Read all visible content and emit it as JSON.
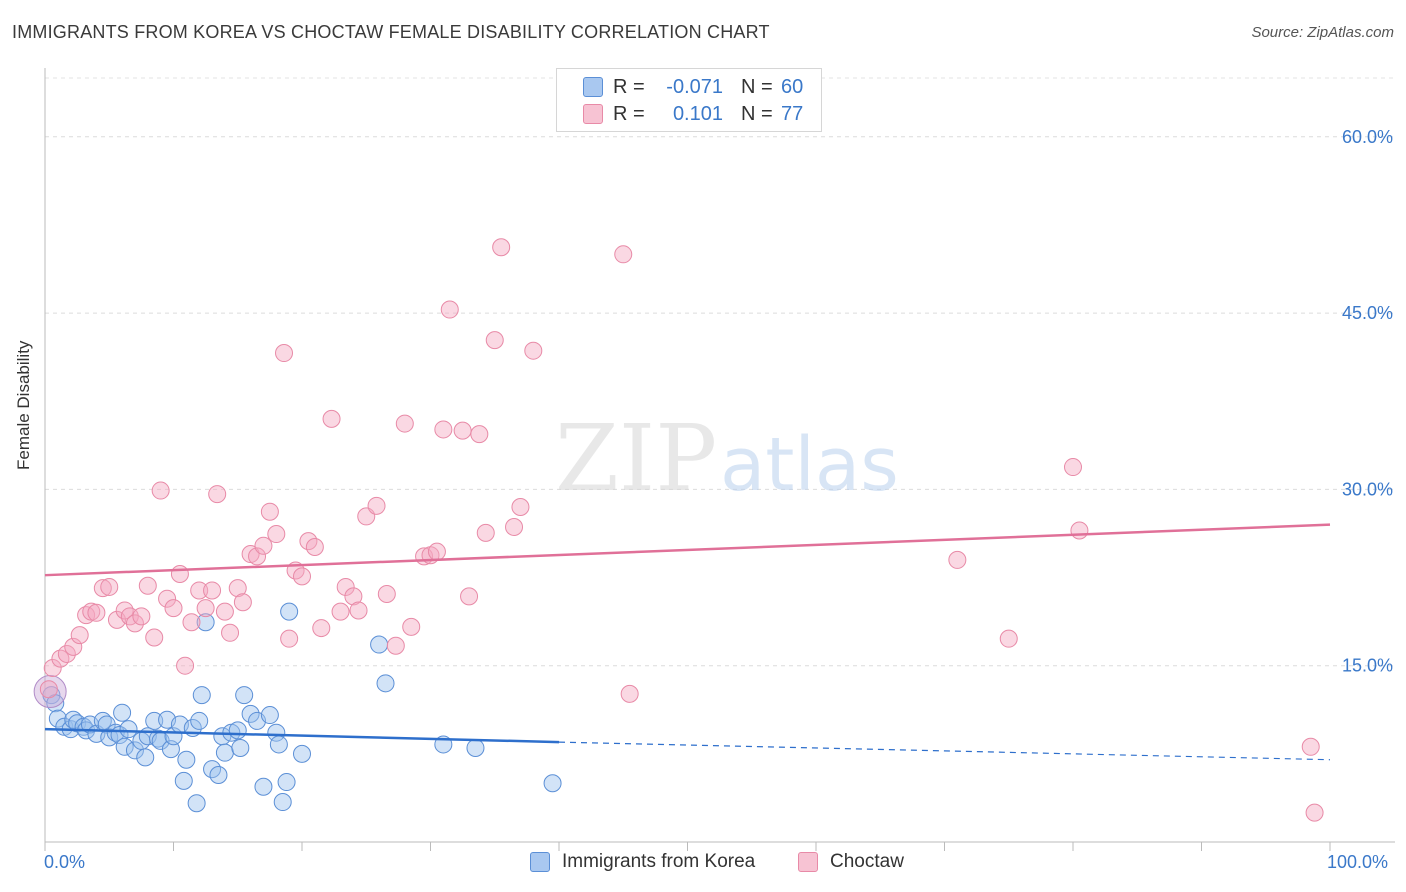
{
  "title": "IMMIGRANTS FROM KOREA VS CHOCTAW FEMALE DISABILITY CORRELATION CHART",
  "source": "Source: ZipAtlas.com",
  "watermark": {
    "zip": "ZIP",
    "atlas": "atlas"
  },
  "legend": {
    "rows": [
      {
        "r_label": "R =",
        "r_value": "-0.071",
        "n_label": "N =",
        "n_value": "60",
        "color": "#a9c8f0",
        "border": "#5b8fd6"
      },
      {
        "r_label": "R =",
        "r_value": "0.101",
        "n_label": "N =",
        "n_value": "77",
        "color": "#f7c3d3",
        "border": "#e88aa7"
      }
    ]
  },
  "bottom_legend": {
    "korea": "Immigrants from Korea",
    "choctaw": "Choctaw"
  },
  "x_axis": {
    "min_label": "0.0%",
    "max_label": "100.0%"
  },
  "chart_data": {
    "type": "scatter",
    "xlabel": "",
    "ylabel": "Female Disability",
    "xlim": [
      0,
      100
    ],
    "ylim": [
      0,
      65
    ],
    "y_ticks": [
      {
        "value": 15,
        "label": "15.0%"
      },
      {
        "value": 30,
        "label": "30.0%"
      },
      {
        "value": 45,
        "label": "45.0%"
      },
      {
        "value": 60,
        "label": "60.0%"
      }
    ],
    "grid": true,
    "series": [
      {
        "name": "Immigrants from Korea",
        "color": "#7fb0ea",
        "trend": {
          "x0": 0,
          "y0": 9.6,
          "x1": 40,
          "y1": 8.5,
          "x_dash_end": 100,
          "y_dash_end": 7.0,
          "color": "#2e6fcc"
        },
        "points": [
          [
            0.5,
            12.5
          ],
          [
            0.8,
            11.8
          ],
          [
            1,
            10.5
          ],
          [
            1.5,
            9.8
          ],
          [
            2,
            9.6
          ],
          [
            2.2,
            10.4
          ],
          [
            2.5,
            10.1
          ],
          [
            3,
            9.8
          ],
          [
            3.2,
            9.5
          ],
          [
            3.5,
            10.0
          ],
          [
            4,
            9.2
          ],
          [
            4.5,
            10.3
          ],
          [
            4.8,
            10.0
          ],
          [
            5,
            8.9
          ],
          [
            5.5,
            9.3
          ],
          [
            5.8,
            9.1
          ],
          [
            6,
            11.0
          ],
          [
            6.2,
            8.1
          ],
          [
            6.5,
            9.6
          ],
          [
            7,
            7.8
          ],
          [
            7.5,
            8.6
          ],
          [
            7.8,
            7.2
          ],
          [
            8,
            9.0
          ],
          [
            8.5,
            10.3
          ],
          [
            8.8,
            8.8
          ],
          [
            9,
            8.6
          ],
          [
            9.5,
            10.4
          ],
          [
            9.8,
            7.9
          ],
          [
            10,
            9.0
          ],
          [
            10.5,
            10.0
          ],
          [
            10.8,
            5.2
          ],
          [
            11,
            7.0
          ],
          [
            11.5,
            9.7
          ],
          [
            11.8,
            3.3
          ],
          [
            12,
            10.3
          ],
          [
            12.2,
            12.5
          ],
          [
            12.5,
            18.7
          ],
          [
            13,
            6.2
          ],
          [
            13.5,
            5.7
          ],
          [
            13.8,
            9.0
          ],
          [
            14,
            7.6
          ],
          [
            14.5,
            9.3
          ],
          [
            15,
            9.5
          ],
          [
            15.2,
            8.0
          ],
          [
            15.5,
            12.5
          ],
          [
            16,
            10.9
          ],
          [
            16.5,
            10.3
          ],
          [
            17,
            4.7
          ],
          [
            17.5,
            10.8
          ],
          [
            18,
            9.3
          ],
          [
            18.2,
            8.3
          ],
          [
            18.5,
            3.4
          ],
          [
            18.8,
            5.1
          ],
          [
            19,
            19.6
          ],
          [
            20,
            7.5
          ],
          [
            26,
            16.8
          ],
          [
            26.5,
            13.5
          ],
          [
            31,
            8.3
          ],
          [
            33.5,
            8.0
          ],
          [
            39.5,
            5.0
          ]
        ]
      },
      {
        "name": "Choctaw",
        "color": "#f5a9c0",
        "trend": {
          "x0": 0,
          "y0": 22.7,
          "x1": 100,
          "y1": 27.0,
          "color": "#e07098"
        },
        "points": [
          [
            0.3,
            13.0
          ],
          [
            0.6,
            14.8
          ],
          [
            1.2,
            15.6
          ],
          [
            1.7,
            16.0
          ],
          [
            2.2,
            16.6
          ],
          [
            2.7,
            17.6
          ],
          [
            3.2,
            19.3
          ],
          [
            3.6,
            19.6
          ],
          [
            4,
            19.5
          ],
          [
            4.5,
            21.6
          ],
          [
            5,
            21.7
          ],
          [
            5.6,
            18.9
          ],
          [
            6.2,
            19.7
          ],
          [
            6.6,
            19.2
          ],
          [
            7,
            18.6
          ],
          [
            7.5,
            19.2
          ],
          [
            8,
            21.8
          ],
          [
            8.5,
            17.4
          ],
          [
            9,
            29.9
          ],
          [
            9.5,
            20.7
          ],
          [
            10,
            19.9
          ],
          [
            10.5,
            22.8
          ],
          [
            10.9,
            15.0
          ],
          [
            11.4,
            18.7
          ],
          [
            12,
            21.4
          ],
          [
            12.5,
            19.9
          ],
          [
            13,
            21.4
          ],
          [
            13.4,
            29.6
          ],
          [
            14,
            19.6
          ],
          [
            14.4,
            17.8
          ],
          [
            15,
            21.6
          ],
          [
            15.4,
            20.4
          ],
          [
            16,
            24.5
          ],
          [
            16.5,
            24.3
          ],
          [
            17,
            25.2
          ],
          [
            17.5,
            28.1
          ],
          [
            18,
            26.2
          ],
          [
            18.6,
            41.6
          ],
          [
            19,
            17.3
          ],
          [
            19.5,
            23.1
          ],
          [
            20,
            22.6
          ],
          [
            20.5,
            25.6
          ],
          [
            21,
            25.1
          ],
          [
            21.5,
            18.2
          ],
          [
            22.3,
            36.0
          ],
          [
            23,
            19.6
          ],
          [
            23.4,
            21.7
          ],
          [
            24,
            20.9
          ],
          [
            24.4,
            19.7
          ],
          [
            25,
            27.7
          ],
          [
            25.8,
            28.6
          ],
          [
            26.6,
            21.1
          ],
          [
            27.3,
            16.7
          ],
          [
            28,
            35.6
          ],
          [
            28.5,
            18.3
          ],
          [
            29.5,
            24.3
          ],
          [
            30,
            24.4
          ],
          [
            30.5,
            24.7
          ],
          [
            31,
            35.1
          ],
          [
            31.5,
            45.3
          ],
          [
            32.5,
            35.0
          ],
          [
            33,
            20.9
          ],
          [
            33.8,
            34.7
          ],
          [
            34.3,
            26.3
          ],
          [
            35,
            42.7
          ],
          [
            35.5,
            50.6
          ],
          [
            36.5,
            26.8
          ],
          [
            37,
            28.5
          ],
          [
            38,
            41.8
          ],
          [
            45,
            50.0
          ],
          [
            45.5,
            12.6
          ],
          [
            71,
            24.0
          ],
          [
            75,
            17.3
          ],
          [
            80,
            31.9
          ],
          [
            80.5,
            26.5
          ],
          [
            98.5,
            8.1
          ],
          [
            98.8,
            2.5
          ]
        ]
      }
    ]
  }
}
